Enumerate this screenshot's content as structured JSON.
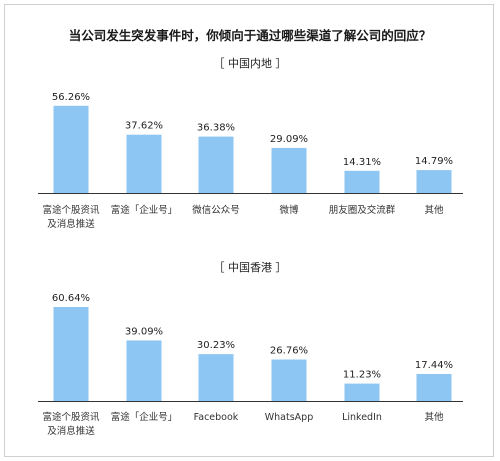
{
  "title": "当公司发生突发事件时，你倾向于通过哪些渠道了解公司的回应？",
  "colors": {
    "bar": "#8ec6f3",
    "axis": "#333333"
  },
  "chart_data": [
    {
      "type": "bar",
      "title": "［ 中国内地 ］",
      "categories": [
        [
          "富途个股资讯",
          "及消息推送"
        ],
        [
          "富途「企业号」"
        ],
        [
          "微信公众号"
        ],
        [
          "微博"
        ],
        [
          "朋友圈及交流群"
        ],
        [
          "其他"
        ]
      ],
      "values": [
        56.26,
        37.62,
        36.38,
        29.09,
        14.31,
        14.79
      ],
      "value_labels": [
        "56.26%",
        "37.62%",
        "36.38%",
        "29.09%",
        "14.31%",
        "14.79%"
      ]
    },
    {
      "type": "bar",
      "title": "［ 中国香港 ］",
      "categories": [
        [
          "富途个股资讯",
          "及消息推送"
        ],
        [
          "富途「企业号」"
        ],
        [
          "Facebook"
        ],
        [
          "WhatsApp"
        ],
        [
          "LinkedIn"
        ],
        [
          "其他"
        ]
      ],
      "values": [
        60.64,
        39.09,
        30.23,
        26.76,
        11.23,
        17.44
      ],
      "value_labels": [
        "60.64%",
        "39.09%",
        "30.23%",
        "26.76%",
        "11.23%",
        "17.44%"
      ]
    }
  ]
}
